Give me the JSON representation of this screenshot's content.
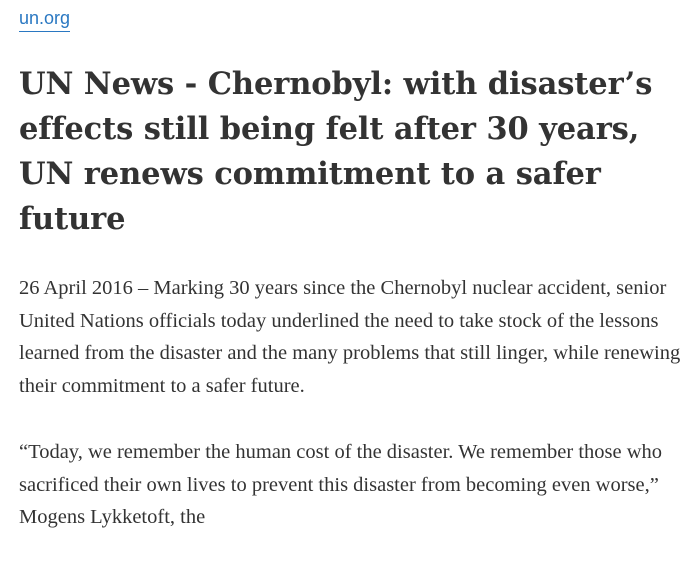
{
  "source": {
    "link_text": "un.org"
  },
  "article": {
    "title": "UN News - Chernobyl: with disaster’s effects still being felt after 30 years, UN renews commitment to a safer future",
    "paragraphs": [
      "26 April 2016 – Marking 30 years since the Chernobyl nuclear accident, senior United Nations officials today underlined the need to take stock of the lessons learned from the disaster and the many problems that still linger, while renewing their commitment to a safer future.",
      "“Today, we remember the human cost of the disaster. We remember those who sacrificed their own lives to prevent this disaster from becoming even worse,” Mogens Lykketoft, the"
    ]
  },
  "colors": {
    "link": "#2a78c2",
    "text": "#333333",
    "background": "#ffffff"
  }
}
